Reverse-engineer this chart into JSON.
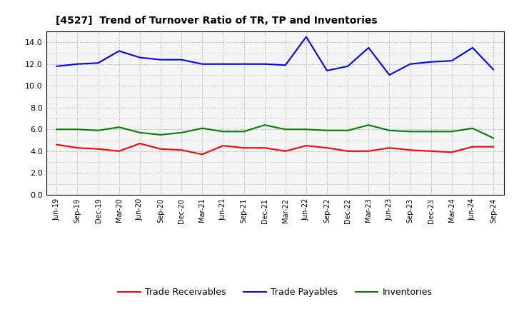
{
  "title": "[4527]  Trend of Turnover Ratio of TR, TP and Inventories",
  "labels": [
    "Jun-19",
    "Sep-19",
    "Dec-19",
    "Mar-20",
    "Jun-20",
    "Sep-20",
    "Dec-20",
    "Mar-21",
    "Jun-21",
    "Sep-21",
    "Dec-21",
    "Mar-22",
    "Jun-22",
    "Sep-22",
    "Dec-22",
    "Mar-23",
    "Jun-23",
    "Sep-23",
    "Dec-23",
    "Mar-24",
    "Jun-24",
    "Sep-24"
  ],
  "trade_receivables": [
    4.6,
    4.3,
    4.2,
    4.0,
    4.7,
    4.2,
    4.1,
    3.7,
    4.5,
    4.3,
    4.3,
    4.0,
    4.5,
    4.3,
    4.0,
    4.0,
    4.3,
    4.1,
    4.0,
    3.9,
    4.4,
    4.4
  ],
  "trade_payables": [
    11.8,
    12.0,
    12.1,
    13.2,
    12.6,
    12.4,
    12.4,
    12.0,
    12.0,
    12.0,
    12.0,
    11.9,
    14.5,
    11.4,
    11.8,
    13.5,
    11.0,
    12.0,
    12.2,
    12.3,
    13.5,
    11.5
  ],
  "inventories": [
    6.0,
    6.0,
    5.9,
    6.2,
    5.7,
    5.5,
    5.7,
    6.1,
    5.8,
    5.8,
    6.4,
    6.0,
    6.0,
    5.9,
    5.9,
    6.4,
    5.9,
    5.8,
    5.8,
    5.8,
    6.1,
    5.2
  ],
  "ylim": [
    0,
    15.0
  ],
  "yticks": [
    0.0,
    2.0,
    4.0,
    6.0,
    8.0,
    10.0,
    12.0,
    14.0
  ],
  "color_tr": "#ff0000",
  "color_tp": "#0000ff",
  "color_inv": "#008000",
  "bg_color": "#ffffff",
  "plot_bg_color": "#f5f5f5",
  "grid_color": "#aaaaaa",
  "legend_tr": "Trade Receivables",
  "legend_tp": "Trade Payables",
  "legend_inv": "Inventories"
}
